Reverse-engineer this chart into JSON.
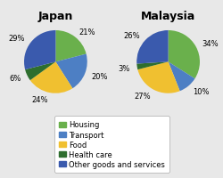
{
  "japan": {
    "title": "Japan",
    "values": [
      21,
      20,
      24,
      6,
      29
    ],
    "labels": [
      "21%",
      "20%",
      "24%",
      "6%",
      "29%"
    ],
    "startangle": 90
  },
  "malaysia": {
    "title": "Malaysia",
    "values": [
      34,
      10,
      27,
      3,
      26
    ],
    "labels": [
      "34%",
      "10%",
      "27%",
      "3%",
      "26%"
    ],
    "startangle": 90
  },
  "colors": [
    "#6ab04c",
    "#4d7fc4",
    "#f0c030",
    "#2e6e2e",
    "#3a5aad"
  ],
  "legend_labels": [
    "Housing",
    "Transport",
    "Food",
    "Health care",
    "Other goods and services"
  ],
  "bg_color": "#e8e8e8",
  "title_fontsize": 9,
  "label_fontsize": 6,
  "legend_fontsize": 6
}
